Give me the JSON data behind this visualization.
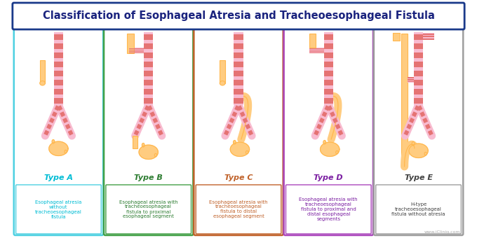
{
  "title": "Classification of Esophageal Atresia and Tracheoesophageal Fistula",
  "title_color": "#1a237e",
  "title_border_color": "#1a3a8a",
  "background_color": "#ffffff",
  "types": [
    "Type A",
    "Type B",
    "Type C",
    "Type D",
    "Type E"
  ],
  "type_colors": [
    "#00bcd4",
    "#2e7d32",
    "#c0622a",
    "#7b1fa2",
    "#424242"
  ],
  "box_border_colors": [
    "#4dd0e1",
    "#43a047",
    "#c0622a",
    "#ab47bc",
    "#9e9e9e"
  ],
  "descriptions": [
    "Esophageal atresia\nwithout\ntracheoesophageal\nfistula",
    "Esophageal atresia with\ntracheoesophageal\nfistula to proximal\nesophageal segment",
    "Esophageal atresia with\ntracheoesophageal\nfistula to distal\nesophageal segment",
    "Esophageal atresia with\ntracheoesophageal\nfistula to proximal and\ndistal esophageal\nsegments",
    "H-type\ntracheoesophageal\nfistula without atresia"
  ],
  "desc_colors": [
    "#00bcd4",
    "#2e7d32",
    "#c0622a",
    "#7b1fa2",
    "#424242"
  ],
  "trachea_fill": "#f8bbd0",
  "trachea_stripe": "#e57373",
  "esophagus_fill": "#ffcc80",
  "esophagus_stroke": "#ffb74d",
  "stomach_fill": "#ffcc80",
  "stomach_stroke": "#ffb74d",
  "watermark": "www.iCliniq.com",
  "panel_bg": "#ffffff"
}
